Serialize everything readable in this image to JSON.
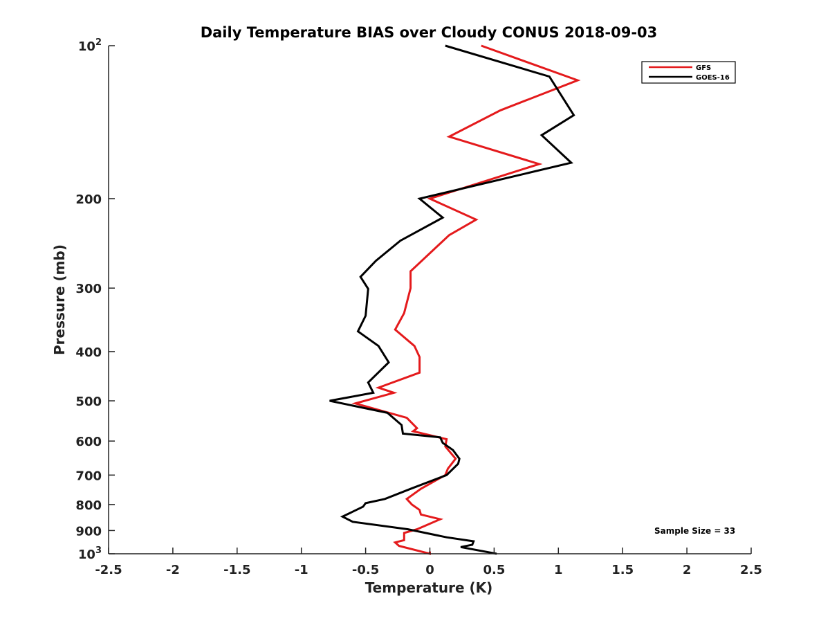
{
  "chart_data": {
    "type": "line",
    "title": "Daily Temperature BIAS over Cloudy CONUS 2018-09-03",
    "xlabel": "Temperature (K)",
    "ylabel": "Pressure (mb)",
    "xlim": [
      -2.5,
      2.5
    ],
    "ylim": [
      100,
      1000
    ],
    "y_scale": "log",
    "y_reversed": true,
    "grid": false,
    "legend_position": "top-right",
    "x_ticks": [
      -2.5,
      -2,
      -1.5,
      -1,
      -0.5,
      0,
      0.5,
      1,
      1.5,
      2,
      2.5
    ],
    "x_tick_labels": [
      "-2.5",
      "-2",
      "-1.5",
      "-1",
      "-0.5",
      "0",
      "0.5",
      "1",
      "1.5",
      "2",
      "2.5"
    ],
    "y_ticks": [
      {
        "value": 100,
        "base": "10",
        "exp": "2"
      },
      {
        "value": 200,
        "label": "200"
      },
      {
        "value": 300,
        "label": "300"
      },
      {
        "value": 400,
        "label": "400"
      },
      {
        "value": 500,
        "label": "500"
      },
      {
        "value": 600,
        "label": "600"
      },
      {
        "value": 700,
        "label": "700"
      },
      {
        "value": 800,
        "label": "800"
      },
      {
        "value": 900,
        "label": "900"
      },
      {
        "value": 1000,
        "base": "10",
        "exp": "3"
      }
    ],
    "annotation": "Sample Size = 33",
    "series": [
      {
        "name": "GFS",
        "color": "#e41a1c",
        "points": [
          [
            0.4,
            100
          ],
          [
            1.15,
            117
          ],
          [
            0.55,
            134
          ],
          [
            0.15,
            151
          ],
          [
            0.85,
            171
          ],
          [
            0.0,
            200
          ],
          [
            0.36,
            220
          ],
          [
            0.15,
            236
          ],
          [
            -0.15,
            278
          ],
          [
            -0.15,
            300
          ],
          [
            -0.2,
            336
          ],
          [
            -0.27,
            362
          ],
          [
            -0.12,
            390
          ],
          [
            -0.08,
            410
          ],
          [
            -0.08,
            440
          ],
          [
            -0.4,
            471
          ],
          [
            -0.28,
            482
          ],
          [
            -0.58,
            506
          ],
          [
            -0.18,
            540
          ],
          [
            -0.1,
            566
          ],
          [
            -0.13,
            574
          ],
          [
            0.13,
            595
          ],
          [
            0.12,
            615
          ],
          [
            0.2,
            650
          ],
          [
            0.14,
            680
          ],
          [
            0.12,
            700
          ],
          [
            -0.07,
            745
          ],
          [
            -0.18,
            780
          ],
          [
            -0.14,
            800
          ],
          [
            -0.08,
            820
          ],
          [
            -0.07,
            837
          ],
          [
            0.08,
            855
          ],
          [
            -0.1,
            895
          ],
          [
            -0.2,
            910
          ],
          [
            -0.2,
            940
          ],
          [
            -0.27,
            950
          ],
          [
            -0.24,
            965
          ],
          [
            0.0,
            1000
          ],
          [
            0.0,
            990
          ]
        ]
      },
      {
        "name": "GOES-16",
        "color": "#000000",
        "points": [
          [
            0.12,
            100
          ],
          [
            0.93,
            115
          ],
          [
            1.12,
            137
          ],
          [
            0.87,
            150
          ],
          [
            1.1,
            170
          ],
          [
            -0.08,
            200
          ],
          [
            0.1,
            218
          ],
          [
            -0.23,
            242
          ],
          [
            -0.42,
            265
          ],
          [
            -0.54,
            285
          ],
          [
            -0.48,
            301
          ],
          [
            -0.5,
            340
          ],
          [
            -0.56,
            365
          ],
          [
            -0.4,
            390
          ],
          [
            -0.32,
            420
          ],
          [
            -0.48,
            460
          ],
          [
            -0.44,
            482
          ],
          [
            -0.78,
            500
          ],
          [
            -0.33,
            528
          ],
          [
            -0.22,
            558
          ],
          [
            -0.21,
            580
          ],
          [
            0.08,
            590
          ],
          [
            0.1,
            605
          ],
          [
            0.18,
            625
          ],
          [
            0.23,
            650
          ],
          [
            0.22,
            665
          ],
          [
            0.13,
            700
          ],
          [
            -0.15,
            745
          ],
          [
            -0.35,
            780
          ],
          [
            -0.5,
            795
          ],
          [
            -0.52,
            808
          ],
          [
            -0.68,
            845
          ],
          [
            -0.6,
            865
          ],
          [
            -0.17,
            895
          ],
          [
            0.13,
            928
          ],
          [
            0.34,
            945
          ],
          [
            0.33,
            960
          ],
          [
            0.24,
            970
          ],
          [
            0.52,
            1000
          ]
        ]
      }
    ]
  }
}
